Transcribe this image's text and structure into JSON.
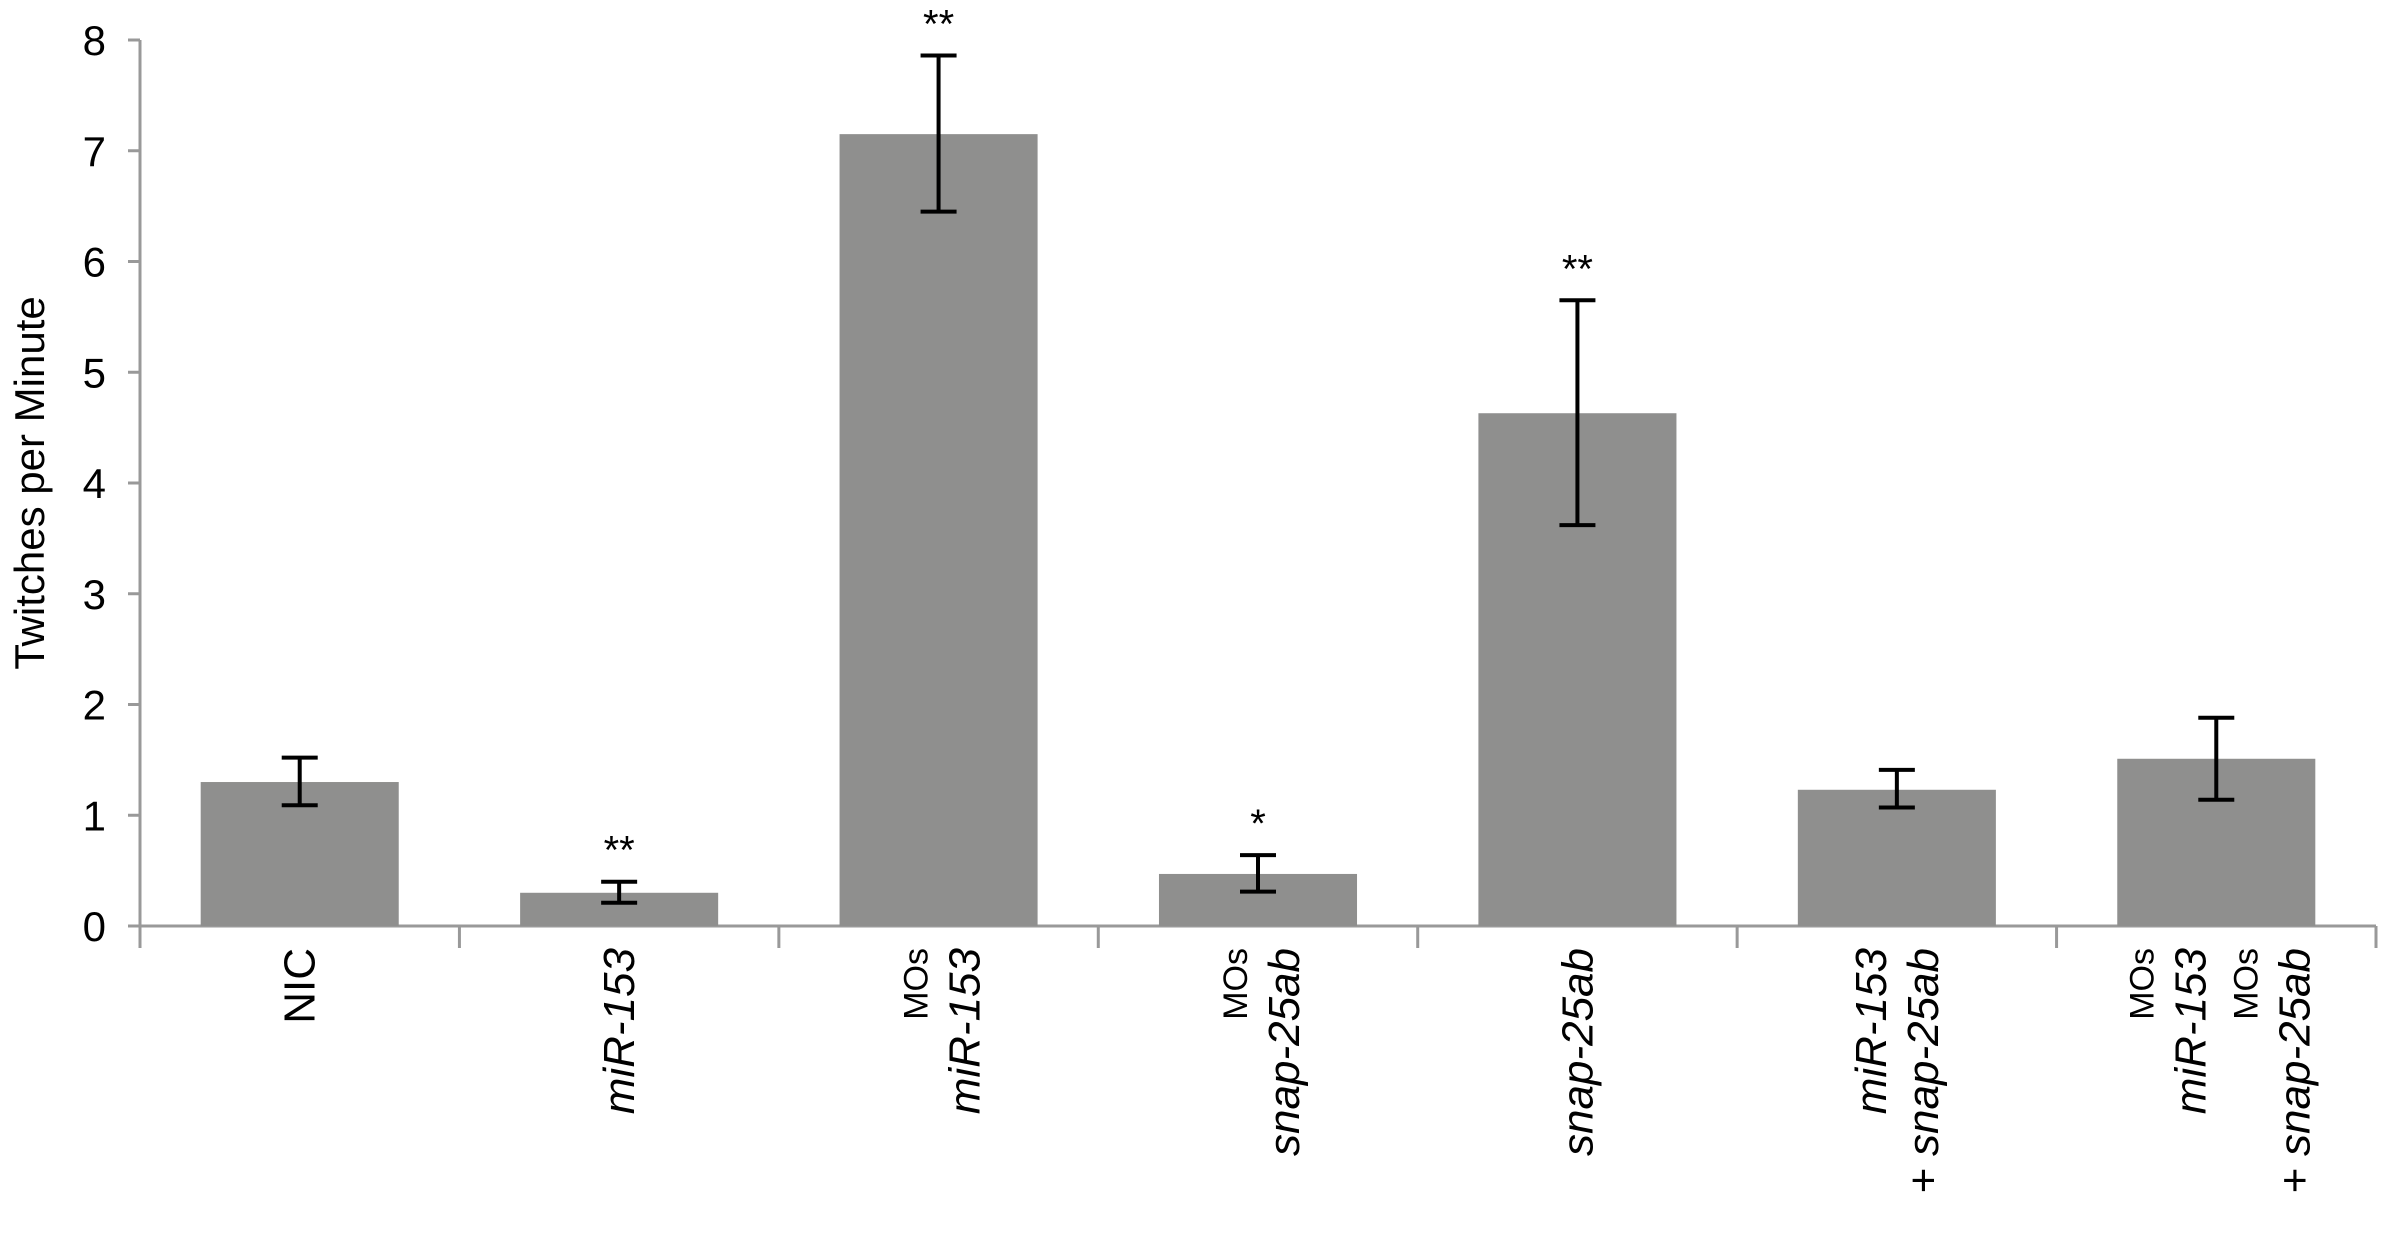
{
  "chart_data": {
    "type": "bar",
    "ylabel": "Twitches per Minute",
    "ylim": [
      0,
      8
    ],
    "yticks": [
      "0",
      "1",
      "2",
      "3",
      "4",
      "5",
      "6",
      "7",
      "8"
    ],
    "colors": {
      "bar": "#8f8f8e",
      "error_bar": "#000000",
      "axis": "#999999"
    },
    "categories": [
      {
        "lines": [
          {
            "text": "NIC",
            "italic": false
          }
        ]
      },
      {
        "lines": [
          {
            "text": "miR-153",
            "italic": true
          }
        ]
      },
      {
        "lines": [
          {
            "text": "MOs",
            "italic": false,
            "small": true
          },
          {
            "text": "miR-153",
            "italic": true
          }
        ]
      },
      {
        "lines": [
          {
            "text": "MOs",
            "italic": false,
            "small": true
          },
          {
            "text": "snap-25ab",
            "italic": true
          }
        ]
      },
      {
        "lines": [
          {
            "text": "snap-25ab",
            "italic": true
          }
        ]
      },
      {
        "lines": [
          {
            "text": "miR-153",
            "italic": true
          },
          {
            "text": "+ snap-25ab",
            "italic": true
          }
        ]
      },
      {
        "lines": [
          {
            "text": "MOs",
            "italic": false,
            "small": true
          },
          {
            "text": "miR-153",
            "italic": true
          },
          {
            "text": "MOs",
            "italic": false,
            "small": true
          },
          {
            "text": "+ snap-25ab",
            "italic": true
          }
        ]
      }
    ],
    "values": [
      1.3,
      0.3,
      7.15,
      0.47,
      4.63,
      1.23,
      1.51
    ],
    "error_low": [
      1.09,
      0.21,
      6.45,
      0.31,
      3.62,
      1.07,
      1.14
    ],
    "error_high": [
      1.52,
      0.4,
      7.86,
      0.64,
      5.65,
      1.41,
      1.88
    ],
    "significance": [
      "",
      "**",
      "**",
      "*",
      "**",
      "",
      ""
    ]
  }
}
